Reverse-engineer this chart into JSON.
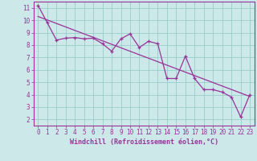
{
  "x_data": [
    0,
    1,
    2,
    3,
    4,
    5,
    6,
    7,
    8,
    9,
    10,
    11,
    12,
    13,
    14,
    15,
    16,
    17,
    18,
    19,
    20,
    21,
    22,
    23
  ],
  "y_data": [
    11.2,
    9.8,
    8.4,
    8.55,
    8.6,
    8.5,
    8.55,
    8.1,
    7.5,
    8.5,
    8.9,
    7.8,
    8.3,
    8.1,
    5.3,
    5.3,
    7.1,
    5.3,
    4.4,
    4.4,
    4.2,
    3.8,
    2.2,
    4.0
  ],
  "trend_x": [
    0,
    23
  ],
  "trend_y": [
    10.3,
    3.85
  ],
  "line_color": "#993399",
  "bg_color": "#cce8e8",
  "grid_color": "#99cccc",
  "xlabel": "Windchill (Refroidissement éolien,°C)",
  "ylim": [
    1.5,
    11.5
  ],
  "xlim": [
    -0.5,
    23.5
  ],
  "yticks": [
    2,
    3,
    4,
    5,
    6,
    7,
    8,
    9,
    10,
    11
  ],
  "xticks": [
    0,
    1,
    2,
    3,
    4,
    5,
    6,
    7,
    8,
    9,
    10,
    11,
    12,
    13,
    14,
    15,
    16,
    17,
    18,
    19,
    20,
    21,
    22,
    23
  ],
  "tick_fontsize": 5.5,
  "xlabel_fontsize": 6.0
}
